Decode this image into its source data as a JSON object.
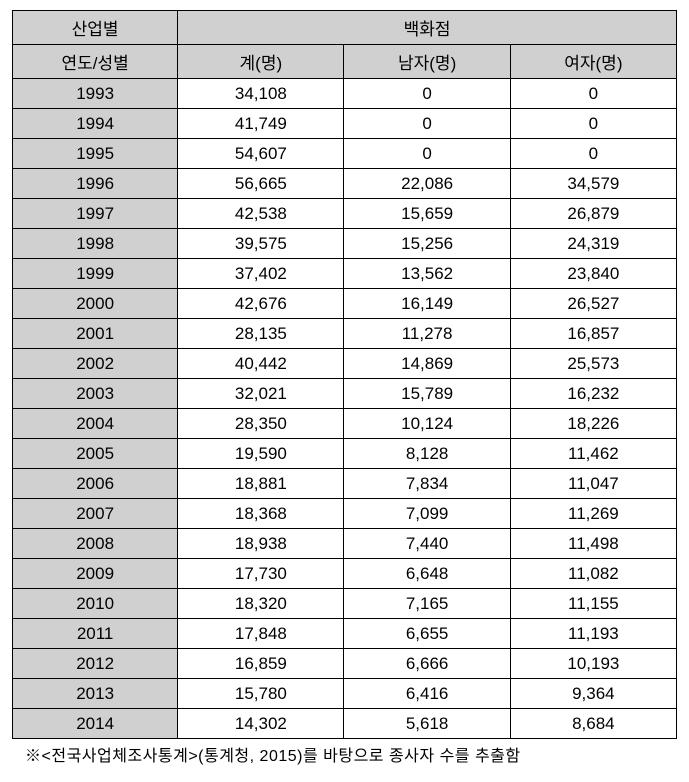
{
  "table": {
    "header1": {
      "col1": "산업별",
      "col2_span": "백화점"
    },
    "header2": {
      "col1": "연도/성별",
      "col2": "계(명)",
      "col3": "남자(명)",
      "col4": "여자(명)"
    },
    "rows": [
      {
        "year": "1993",
        "total": "34,108",
        "male": "0",
        "female": "0"
      },
      {
        "year": "1994",
        "total": "41,749",
        "male": "0",
        "female": "0"
      },
      {
        "year": "1995",
        "total": "54,607",
        "male": "0",
        "female": "0"
      },
      {
        "year": "1996",
        "total": "56,665",
        "male": "22,086",
        "female": "34,579"
      },
      {
        "year": "1997",
        "total": "42,538",
        "male": "15,659",
        "female": "26,879"
      },
      {
        "year": "1998",
        "total": "39,575",
        "male": "15,256",
        "female": "24,319"
      },
      {
        "year": "1999",
        "total": "37,402",
        "male": "13,562",
        "female": "23,840"
      },
      {
        "year": "2000",
        "total": "42,676",
        "male": "16,149",
        "female": "26,527"
      },
      {
        "year": "2001",
        "total": "28,135",
        "male": "11,278",
        "female": "16,857"
      },
      {
        "year": "2002",
        "total": "40,442",
        "male": "14,869",
        "female": "25,573"
      },
      {
        "year": "2003",
        "total": "32,021",
        "male": "15,789",
        "female": "16,232"
      },
      {
        "year": "2004",
        "total": "28,350",
        "male": "10,124",
        "female": "18,226"
      },
      {
        "year": "2005",
        "total": "19,590",
        "male": "8,128",
        "female": "11,462"
      },
      {
        "year": "2006",
        "total": "18,881",
        "male": "7,834",
        "female": "11,047"
      },
      {
        "year": "2007",
        "total": "18,368",
        "male": "7,099",
        "female": "11,269"
      },
      {
        "year": "2008",
        "total": "18,938",
        "male": "7,440",
        "female": "11,498"
      },
      {
        "year": "2009",
        "total": "17,730",
        "male": "6,648",
        "female": "11,082"
      },
      {
        "year": "2010",
        "total": "18,320",
        "male": "7,165",
        "female": "11,155"
      },
      {
        "year": "2011",
        "total": "17,848",
        "male": "6,655",
        "female": "11,193"
      },
      {
        "year": "2012",
        "total": "16,859",
        "male": "6,666",
        "female": "10,193"
      },
      {
        "year": "2013",
        "total": "15,780",
        "male": "6,416",
        "female": "9,364"
      },
      {
        "year": "2014",
        "total": "14,302",
        "male": "5,618",
        "female": "8,684"
      }
    ]
  },
  "footnote": "※<전국사업체조사통계>(통계청, 2015)를 바탕으로 종사자 수를 추출함"
}
